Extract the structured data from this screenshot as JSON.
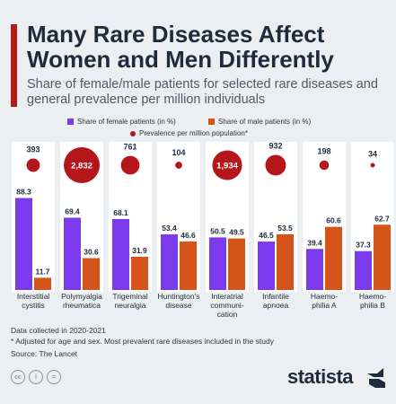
{
  "title": "Many Rare Diseases Affect Women and Men Differently",
  "subtitle": "Share of female/male patients for selected rare diseases and general prevalence per million individuals",
  "legend": {
    "female": "Share of female patients (in %)",
    "male": "Share of male patients (in %)",
    "prevalence": "Prevalence per million population*"
  },
  "colors": {
    "female": "#7c3aed",
    "male": "#d4541a",
    "prevalence": "#b5161b",
    "accent": "#b01c1c"
  },
  "chart_data": {
    "type": "bar",
    "categories": [
      [
        "Interstitial",
        "cystitis"
      ],
      [
        "Polymyalgia",
        "rheumatica"
      ],
      [
        "Trigeminal",
        "neuralgia"
      ],
      [
        "Huntington's",
        "disease"
      ],
      [
        "Interatrial",
        "communi-",
        "cation"
      ],
      [
        "Infantile",
        "apnoea"
      ],
      [
        "Haemo-",
        "philia A"
      ],
      [
        "Haemo-",
        "philia B"
      ]
    ],
    "series": [
      {
        "name": "Share of female patients (in %)",
        "values": [
          88.3,
          69.4,
          68.1,
          53.4,
          50.5,
          46.5,
          39.4,
          37.3
        ]
      },
      {
        "name": "Share of male patients (in %)",
        "values": [
          11.7,
          30.6,
          31.9,
          46.6,
          49.5,
          53.5,
          60.6,
          62.7
        ]
      }
    ],
    "prevalence": {
      "name": "Prevalence per million population*",
      "values": [
        393,
        2832,
        761,
        104,
        1934,
        932,
        198,
        34
      ],
      "labels": [
        "393",
        "2,832",
        "761",
        "104",
        "1,934",
        "932",
        "198",
        "34"
      ]
    },
    "ylim": [
      0,
      100
    ]
  },
  "notes": {
    "line1": "Data collected in 2020-2021",
    "line2": "* Adjusted for age and sex. Most prevalent rare diseases included in the study",
    "source": "Source: The Lancet"
  },
  "footer": {
    "cc1": "cc",
    "cc2": "i",
    "cc3": "=",
    "brand": "statista"
  }
}
